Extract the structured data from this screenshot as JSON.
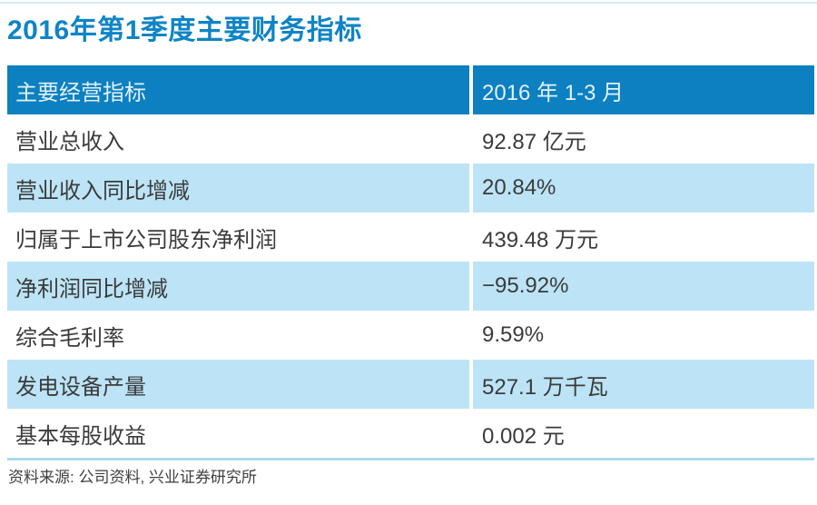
{
  "page": {
    "title": "2016年第1季度主要财务指标",
    "source_note": "资料来源: 公司资料, 兴业证券研究所"
  },
  "colors": {
    "title_blue": "#0e84c6",
    "header_bg": "#0c80c0",
    "header_text": "#e2f1fa",
    "alt_row_bg": "#bce4f6",
    "table_bottom_border": "#a8daf1",
    "top_rule": "#d7e8f3",
    "body_text": "#3b3b3b"
  },
  "table": {
    "header": {
      "label": "主要经营指标",
      "value": "2016 年 1-3 月"
    },
    "rows": [
      {
        "label": "营业总收入",
        "value": "92.87 亿元"
      },
      {
        "label": "营业收入同比增减",
        "value": "20.84%"
      },
      {
        "label": "归属于上市公司股东净利润",
        "value": "439.48 万元"
      },
      {
        "label": "净利润同比增减",
        "value": "−95.92%"
      },
      {
        "label": "综合毛利率",
        "value": "9.59%"
      },
      {
        "label": "发电设备产量",
        "value": "527.1 万千瓦"
      },
      {
        "label": "基本每股收益",
        "value": "0.002 元"
      }
    ]
  },
  "chart_data": {
    "type": "table",
    "title": "2016年第1季度主要财务指标",
    "columns": [
      "主要经营指标",
      "2016 年 1-3 月"
    ],
    "rows": [
      [
        "营业总收入",
        "92.87 亿元"
      ],
      [
        "营业收入同比增减",
        "20.84%"
      ],
      [
        "归属于上市公司股东净利润",
        "439.48 万元"
      ],
      [
        "净利润同比增减",
        "−95.92%"
      ],
      [
        "综合毛利率",
        "9.59%"
      ],
      [
        "发电设备产量",
        "527.1 万千瓦"
      ],
      [
        "基本每股收益",
        "0.002 元"
      ]
    ],
    "source": "资料来源: 公司资料, 兴业证券研究所"
  }
}
